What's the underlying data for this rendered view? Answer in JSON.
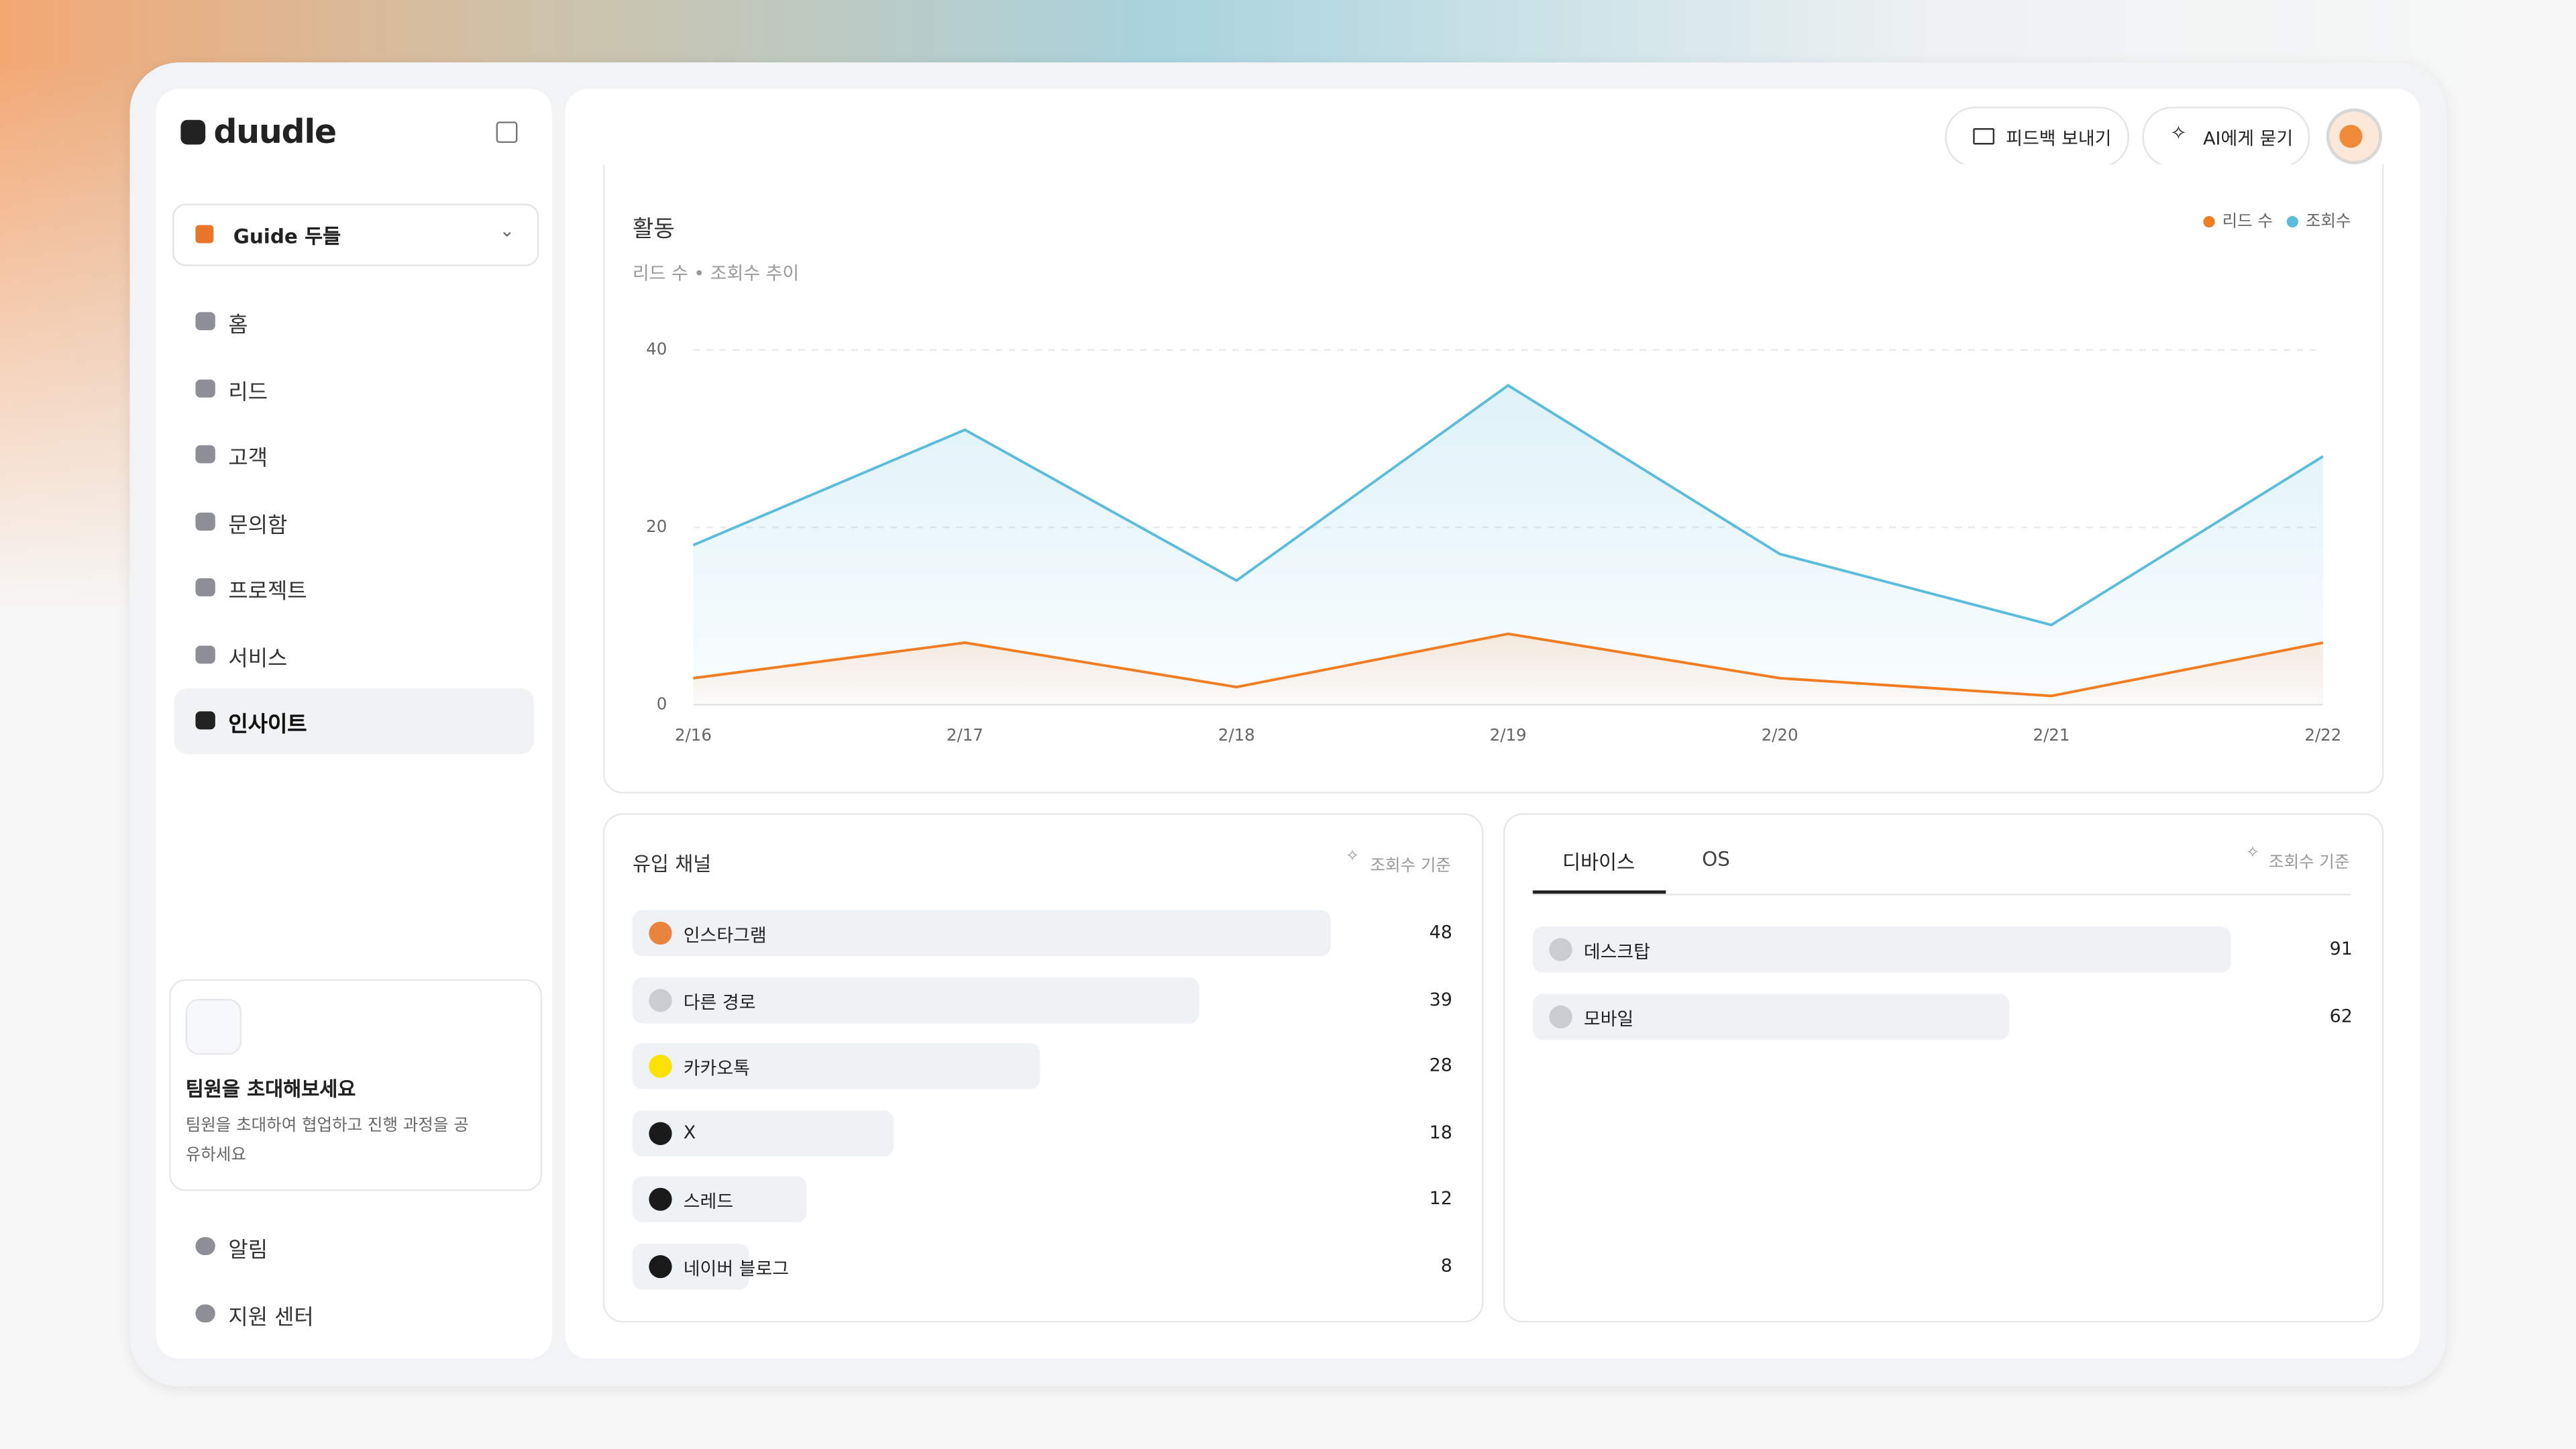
{
  "sidebar": {
    "brand": "duudle",
    "workspace": "Guide 두들",
    "nav": [
      "홈",
      "리드",
      "고객",
      "문의함",
      "프로젝트",
      "서비스",
      "인사이트"
    ],
    "invite": {
      "title": "팀원을 초대해보세요",
      "body": "팀원을 초대하여 협업하고 진행 과정을 공유하세요"
    },
    "footer_nav": [
      "알림",
      "지원 센터"
    ]
  },
  "header": {
    "buttons": [
      "피드백 보내기",
      "AI에게 묻기"
    ]
  },
  "chart_data": {
    "type": "area",
    "title": "활동",
    "subtitle": "리드 수 • 조회수 추이",
    "categories": [
      "2/16",
      "2/17",
      "2/18",
      "2/19",
      "2/20",
      "2/21",
      "2/22"
    ],
    "series": [
      {
        "name": "리드 수",
        "color": "#f07d22",
        "values": [
          3,
          7,
          2,
          8,
          3,
          1,
          7
        ]
      },
      {
        "name": "조회수",
        "color": "#5bbcdc",
        "values": [
          18,
          31,
          14,
          36,
          17,
          9,
          28
        ]
      }
    ],
    "ylim": [
      0,
      40
    ],
    "yticks": [
      0,
      20,
      40
    ],
    "grid": true,
    "legend": "top-right"
  },
  "channels": {
    "title": "유입 채널",
    "basis": "조회수 기준",
    "rows": [
      {
        "label": "인스타그램",
        "value": 48
      },
      {
        "label": "다른 경로",
        "value": 39
      },
      {
        "label": "카카오톡",
        "value": 28
      },
      {
        "label": "X",
        "value": 18
      },
      {
        "label": "스레드",
        "value": 12
      },
      {
        "label": "네이버 블로그",
        "value": 8
      }
    ]
  },
  "devices": {
    "tabs": [
      "디바이스",
      "OS"
    ],
    "basis": "조회수 기준",
    "rows": [
      {
        "label": "데스크탑",
        "value": 91
      },
      {
        "label": "모바일",
        "value": 62
      }
    ]
  }
}
